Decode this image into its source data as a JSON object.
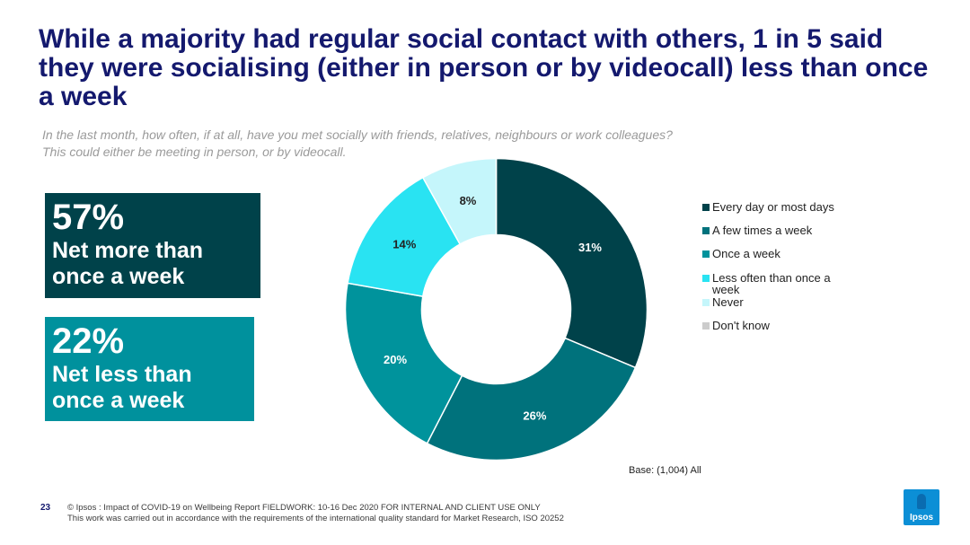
{
  "title": "While a majority had regular social contact with others, 1 in 5 said they were socialising (either in person or by videocall) less than once a week",
  "question": {
    "line1": "In the last month, how often, if at all, have you met socially with friends, relatives, neighbours or work colleagues?",
    "line2": "This could either be meeting in person, or by videocall."
  },
  "net_more": {
    "pct": "57%",
    "label_line1": "Net more than",
    "label_line2": "once a week",
    "color": "#00424a"
  },
  "net_less": {
    "pct": "22%",
    "label_line1": "Net less than",
    "label_line2": "once a week",
    "color": "#00919d"
  },
  "chart_data": {
    "type": "pie",
    "donut": true,
    "legend_position": "right",
    "categories": [
      "Every day or most days",
      "A few times a week",
      "Once a week",
      "Less often than once a week",
      "Never",
      "Don't know"
    ],
    "values": [
      31,
      26,
      20,
      14,
      8,
      0
    ],
    "labels": [
      "31%",
      "26%",
      "20%",
      "14%",
      "8%",
      ""
    ],
    "colors": [
      "#00424a",
      "#00727c",
      "#00939c",
      "#29e3f2",
      "#c5f6fb",
      "#cccccc"
    ],
    "label_colors": [
      "#ffffff",
      "#ffffff",
      "#ffffff",
      "#222222",
      "#222222",
      "#222222"
    ]
  },
  "base": "Base: (1,004) All",
  "footer": {
    "page": "23",
    "line1": "© Ipsos : Impact of COVID-19 on Wellbeing Report FIELDWORK: 10-16 Dec 2020 FOR INTERNAL AND CLIENT USE ONLY",
    "line2": "This work was carried out in accordance with the requirements of the international quality standard for Market Research, ISO 20252"
  },
  "logo": {
    "text": "Ipsos",
    "color": "#0c8fd6"
  }
}
